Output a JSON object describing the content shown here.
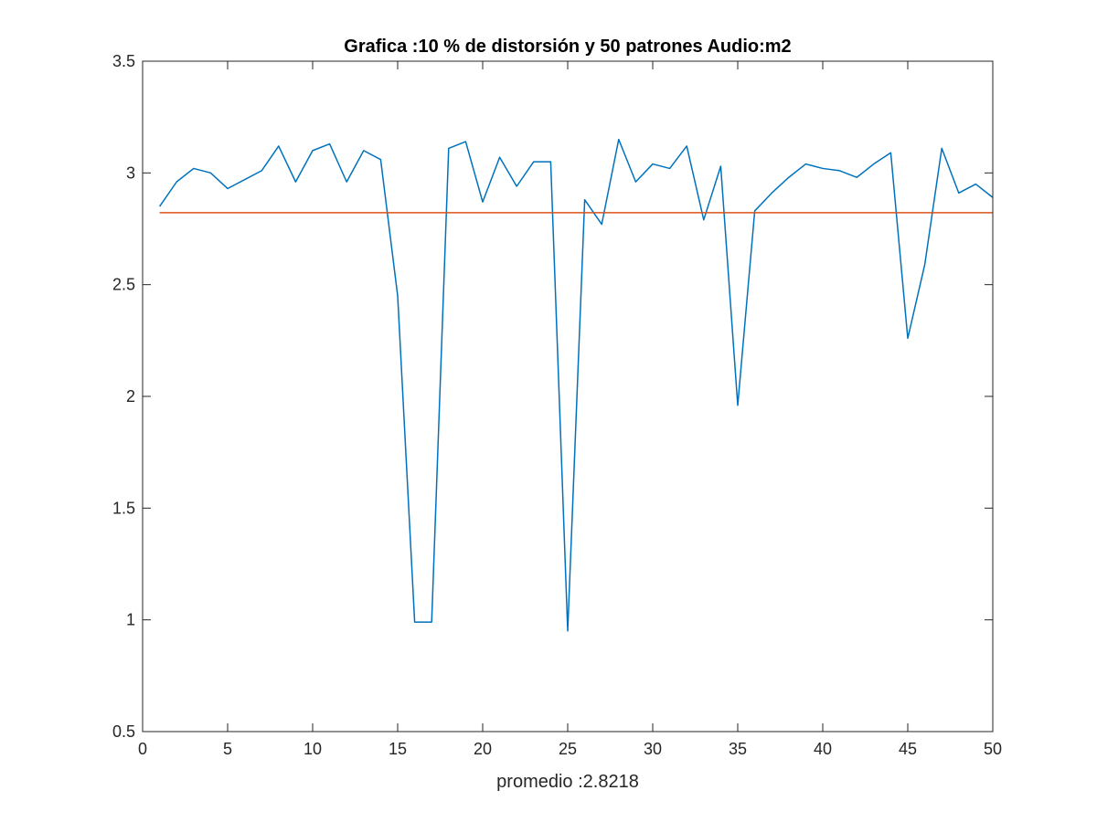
{
  "chart_data": {
    "type": "line",
    "title": "Grafica :10 % de distorsión y 50 patrones Audio:m2",
    "xlabel": "promedio :2.8218",
    "ylabel": "",
    "xlim": [
      0,
      50
    ],
    "ylim": [
      0.5,
      3.5
    ],
    "xticks": [
      0,
      5,
      10,
      15,
      20,
      25,
      30,
      35,
      40,
      45,
      50
    ],
    "yticks": [
      0.5,
      1,
      1.5,
      2,
      2.5,
      3,
      3.5
    ],
    "xtick_labels": [
      "0",
      "5",
      "10",
      "15",
      "20",
      "25",
      "30",
      "35",
      "40",
      "45",
      "50"
    ],
    "ytick_labels": [
      "0.5",
      "1",
      "1.5",
      "2",
      "2.5",
      "3",
      "3.5"
    ],
    "grid": false,
    "legend": "none",
    "series": [
      {
        "color": "#0072BD",
        "x": [
          1,
          2,
          3,
          4,
          5,
          6,
          7,
          8,
          9,
          10,
          11,
          12,
          13,
          14,
          15,
          16,
          17,
          18,
          19,
          20,
          21,
          22,
          23,
          24,
          25,
          26,
          27,
          28,
          29,
          30,
          31,
          32,
          33,
          34,
          35,
          36,
          37,
          38,
          39,
          40,
          41,
          42,
          43,
          44,
          45,
          46,
          47,
          48,
          49,
          50
        ],
        "y": [
          2.85,
          2.96,
          3.02,
          3.0,
          2.93,
          2.97,
          3.01,
          3.12,
          2.96,
          3.1,
          3.13,
          2.96,
          3.1,
          3.06,
          2.45,
          0.99,
          0.99,
          3.11,
          3.14,
          2.87,
          3.07,
          2.94,
          3.05,
          3.05,
          0.95,
          2.88,
          2.77,
          3.15,
          2.96,
          3.04,
          3.02,
          3.12,
          2.79,
          3.03,
          1.96,
          2.83,
          2.91,
          2.98,
          3.04,
          3.02,
          3.01,
          2.98,
          3.04,
          3.09,
          2.26,
          2.59,
          3.11,
          2.91,
          2.95,
          2.89
        ]
      },
      {
        "color": "#D95319",
        "x": [
          1,
          50
        ],
        "y": [
          2.8218,
          2.8218
        ]
      }
    ]
  }
}
